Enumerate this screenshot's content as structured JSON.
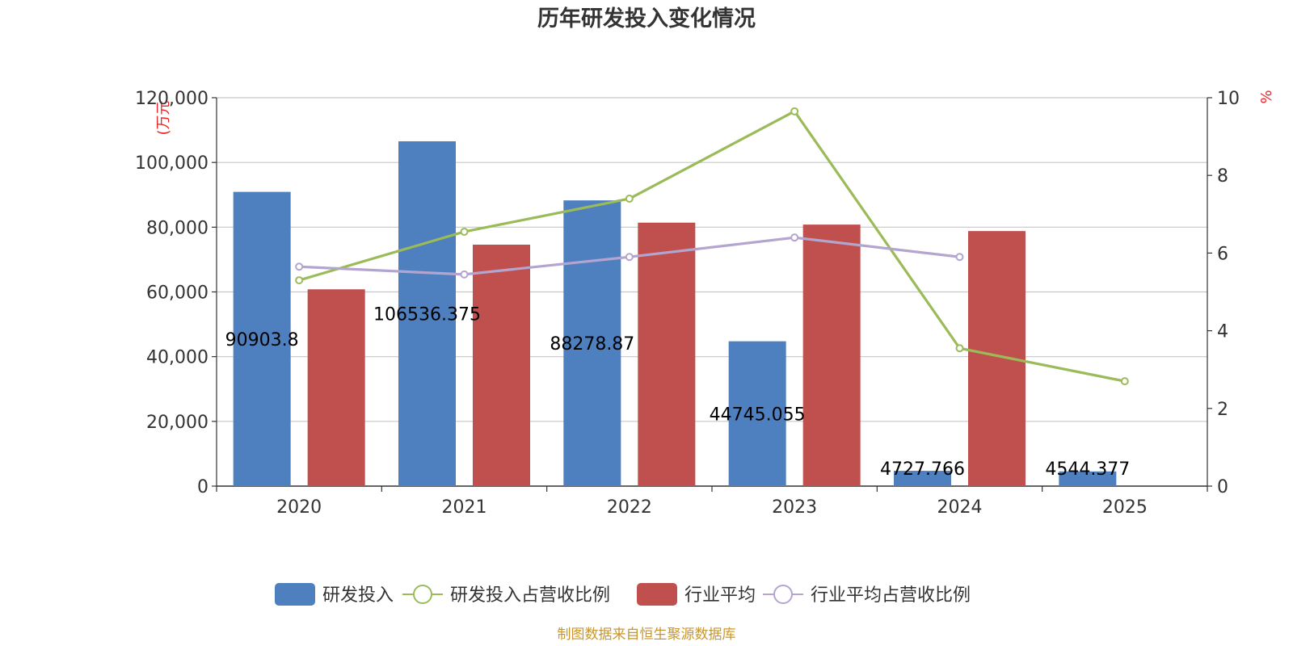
{
  "chart_data": {
    "type": "bar",
    "title": "历年研发投入变化情况",
    "categories": [
      "2020",
      "2021",
      "2022",
      "2023",
      "2024",
      "2025"
    ],
    "y_left": {
      "unit": "(万元",
      "ylim": [
        0,
        120000
      ],
      "ticks": [
        "0",
        "20,000",
        "40,000",
        "60,000",
        "80,000",
        "100,000",
        "120,000"
      ],
      "tick_values": [
        0,
        20000,
        40000,
        60000,
        80000,
        100000,
        120000
      ]
    },
    "y_right": {
      "unit": "%",
      "ylim": [
        0,
        10
      ],
      "ticks": [
        "0",
        "2",
        "4",
        "6",
        "8",
        "10"
      ],
      "tick_values": [
        0,
        2,
        4,
        6,
        8,
        10
      ]
    },
    "grid": true,
    "legend_position": "bottom-center",
    "series": [
      {
        "name": "研发投入",
        "type": "bar",
        "axis": "left",
        "color": "#4e7fbf",
        "values": [
          90903.8,
          106536.375,
          88278.87,
          44745.055,
          4727.766,
          4544.377
        ],
        "labels": [
          "90903.8",
          "106536.375",
          "88278.87",
          "44745.055",
          "4727.766",
          "4544.377"
        ]
      },
      {
        "name": "研发投入占营收比例",
        "type": "line",
        "axis": "right",
        "color": "#9bbb59",
        "values": [
          5.3,
          6.55,
          7.4,
          9.65,
          3.55,
          2.7
        ]
      },
      {
        "name": "行业平均",
        "type": "bar",
        "axis": "left",
        "color": "#c0504d",
        "values": [
          60800,
          74600,
          81400,
          80800,
          78800,
          null
        ]
      },
      {
        "name": "行业平均占营收比例",
        "type": "line",
        "axis": "right",
        "color": "#b3a5cf",
        "values": [
          5.65,
          5.45,
          5.9,
          6.4,
          5.9,
          null
        ]
      }
    ],
    "source_note": "制图数据来自恒生聚源数据库"
  }
}
